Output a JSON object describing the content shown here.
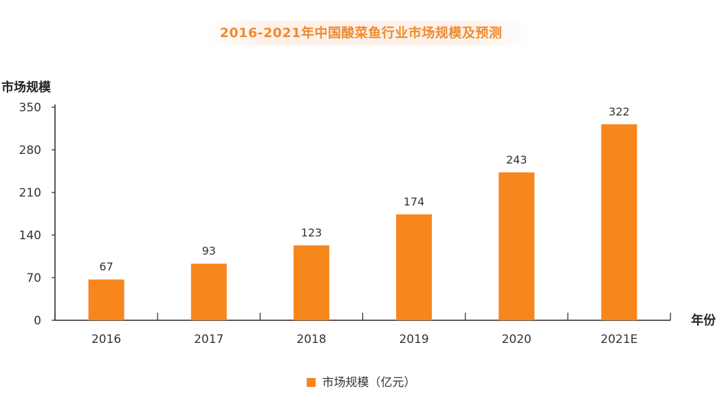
{
  "chart_data": {
    "type": "bar",
    "title": "2016-2021年中国酸菜鱼行业市场规模及预测",
    "ylabel": "市场规模",
    "xlabel": "年份",
    "categories": [
      "2016",
      "2017",
      "2018",
      "2019",
      "2020",
      "2021E"
    ],
    "series": [
      {
        "name": "市场规模（亿元）",
        "values": [
          67,
          93,
          123,
          174,
          243,
          322
        ]
      }
    ],
    "ylim": [
      0,
      350
    ],
    "yticks": [
      "0",
      "70",
      "140",
      "210",
      "280",
      "350"
    ],
    "data_labels": [
      "67",
      "93",
      "123",
      "174",
      "243",
      "322"
    ],
    "grid": false,
    "legend_position": "bottom",
    "colors": {
      "bar": "#f7861d",
      "title": "#f08a2c",
      "axis": "#222222",
      "text": "#333333"
    }
  }
}
